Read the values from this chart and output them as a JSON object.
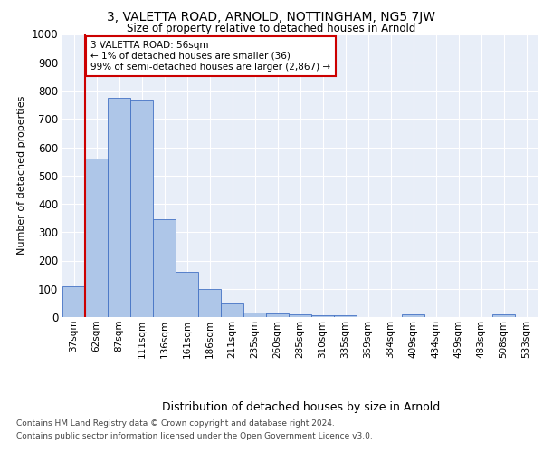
{
  "title": "3, VALETTA ROAD, ARNOLD, NOTTINGHAM, NG5 7JW",
  "subtitle": "Size of property relative to detached houses in Arnold",
  "xlabel": "Distribution of detached houses by size in Arnold",
  "ylabel": "Number of detached properties",
  "categories": [
    "37sqm",
    "62sqm",
    "87sqm",
    "111sqm",
    "136sqm",
    "161sqm",
    "186sqm",
    "211sqm",
    "235sqm",
    "260sqm",
    "285sqm",
    "310sqm",
    "335sqm",
    "359sqm",
    "384sqm",
    "409sqm",
    "434sqm",
    "459sqm",
    "483sqm",
    "508sqm",
    "533sqm"
  ],
  "values": [
    110,
    560,
    775,
    768,
    345,
    160,
    98,
    50,
    15,
    12,
    10,
    5,
    8,
    1,
    0,
    10,
    0,
    0,
    0,
    10,
    0
  ],
  "bar_color": "#aec6e8",
  "bar_edge_color": "#4472c4",
  "red_line_x": 0.5,
  "annotation_text": "3 VALETTA ROAD: 56sqm\n← 1% of detached houses are smaller (36)\n99% of semi-detached houses are larger (2,867) →",
  "annotation_box_color": "#ffffff",
  "annotation_box_edge": "#cc0000",
  "red_line_color": "#cc0000",
  "ylim": [
    0,
    1000
  ],
  "yticks": [
    0,
    100,
    200,
    300,
    400,
    500,
    600,
    700,
    800,
    900,
    1000
  ],
  "plot_bg_color": "#e8eef8",
  "footer1": "Contains HM Land Registry data © Crown copyright and database right 2024.",
  "footer2": "Contains public sector information licensed under the Open Government Licence v3.0."
}
